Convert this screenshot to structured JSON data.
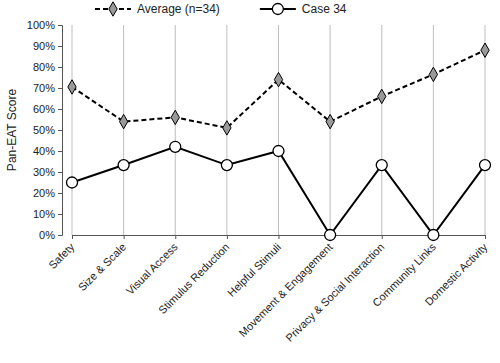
{
  "chart_data": {
    "type": "line",
    "y_label": "Pan-EAT Score",
    "categories": [
      "Safety",
      "Size & Scale",
      "Visual Access",
      "Stimulus Reduction",
      "Helpful Stimuli",
      "Movement & Engagement",
      "Privacy & Social Interaction",
      "Community Links",
      "Domestic Activity"
    ],
    "series": [
      {
        "name": "Average (n=34)",
        "color": "#000000",
        "marker": "diamond",
        "line_style": "dashed",
        "values": [
          70.5,
          54,
          56,
          51,
          74,
          54,
          66,
          76.5,
          88
        ]
      },
      {
        "name": "Case 34",
        "color": "#000000",
        "marker": "circle",
        "line_style": "solid",
        "values": [
          25,
          33.3,
          42,
          33.3,
          40,
          0,
          33.3,
          0,
          33.3
        ]
      }
    ],
    "ylim": [
      0,
      100
    ],
    "yticks": [
      {
        "value": 0,
        "label": "0%"
      },
      {
        "value": 10,
        "label": "10%"
      },
      {
        "value": 20,
        "label": "20%"
      },
      {
        "value": 30,
        "label": "30%"
      },
      {
        "value": 40,
        "label": "40%"
      },
      {
        "value": 50,
        "label": "50%"
      },
      {
        "value": 60,
        "label": "60%"
      },
      {
        "value": 70,
        "label": "70%"
      },
      {
        "value": 80,
        "label": "80%"
      },
      {
        "value": 90,
        "label": "90%"
      },
      {
        "value": 100,
        "label": "100%"
      }
    ],
    "grid": true,
    "legend": "top"
  }
}
